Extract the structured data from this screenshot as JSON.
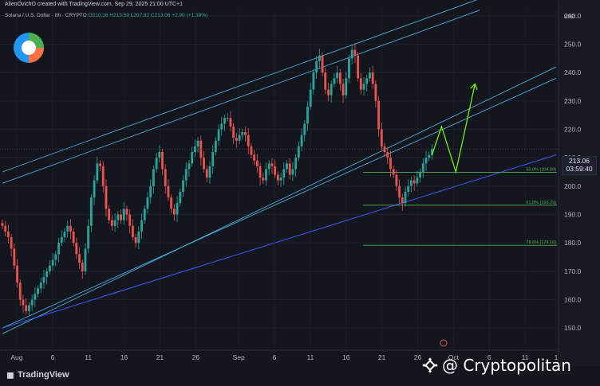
{
  "header": {
    "credit": "AlienOvichO created with TradingView.com, Sep 29, 2025 21:00 UTC+1",
    "symbol": "Solana / U.S. Dollar · 8h · CRYPTO",
    "ohlc": "O210.16 H213.59 L207.82 C213.06 +2.90 (+1.38%)"
  },
  "axis": {
    "currency": "USD"
  },
  "price_tag": {
    "price": "213.06",
    "countdown": "03:59:40"
  },
  "footer": {
    "brand": "TradingView",
    "watermark": "@ Cryptopolitan"
  },
  "colors": {
    "up": "#26a69a",
    "down": "#ef5350",
    "channel": "#4fc3f7",
    "trend": "#3d5afe",
    "fib": "#4caf50",
    "arrow": "#76ff03"
  },
  "chart_data": {
    "type": "candlestick",
    "ylim": [
      145,
      265
    ],
    "y_ticks": [
      150,
      160,
      170,
      180,
      190,
      200,
      210,
      220,
      230,
      240,
      250,
      260
    ],
    "x_ticks": [
      {
        "label": "Aug",
        "bar": 6
      },
      {
        "label": "6",
        "bar": 21
      },
      {
        "label": "11",
        "bar": 36
      },
      {
        "label": "16",
        "bar": 51
      },
      {
        "label": "21",
        "bar": 66
      },
      {
        "label": "26",
        "bar": 81
      },
      {
        "label": "Sep",
        "bar": 99
      },
      {
        "label": "6",
        "bar": 114
      },
      {
        "label": "11",
        "bar": 129
      },
      {
        "label": "16",
        "bar": 144
      },
      {
        "label": "21",
        "bar": 159
      },
      {
        "label": "26",
        "bar": 174
      },
      {
        "label": "Oct",
        "bar": 189
      },
      {
        "label": "6",
        "bar": 204
      },
      {
        "label": "11",
        "bar": 219
      },
      {
        "label": "1",
        "bar": 232
      }
    ],
    "closes": [
      186,
      184,
      182,
      178,
      172,
      166,
      160,
      158,
      156,
      158,
      160,
      162,
      164,
      166,
      168,
      170,
      172,
      174,
      176,
      180,
      182,
      184,
      186,
      184,
      180,
      176,
      173,
      170,
      178,
      186,
      196,
      202,
      208,
      207,
      200,
      192,
      188,
      186,
      188,
      190,
      188,
      192,
      190,
      186,
      182,
      180,
      184,
      188,
      192,
      196,
      200,
      206,
      210,
      212,
      206,
      200,
      196,
      192,
      190,
      194,
      198,
      202,
      206,
      208,
      212,
      214,
      216,
      210,
      206,
      203,
      207,
      212,
      216,
      220,
      222,
      224,
      224,
      221,
      217,
      216,
      218,
      219,
      218,
      214,
      211,
      209,
      207,
      203,
      202,
      206,
      208,
      207,
      204,
      202,
      203,
      206,
      208,
      204,
      206,
      210,
      214,
      218,
      222,
      228,
      234,
      240,
      244,
      246,
      240,
      234,
      232,
      236,
      238,
      240,
      236,
      232,
      238,
      245,
      248,
      246,
      238,
      234,
      236,
      238,
      240,
      236,
      230,
      220,
      214,
      212,
      210,
      206,
      204,
      200,
      196,
      194,
      198,
      200,
      202,
      201,
      203,
      205,
      208,
      210,
      211,
      213
    ],
    "bar_start_index": 0,
    "fib_levels": [
      {
        "label": "50.0% (204.89)",
        "price": 204.89
      },
      {
        "label": "61.8% (193.29)",
        "price": 193.29
      },
      {
        "label": "78.6% (179.16)",
        "price": 179.16
      }
    ],
    "channel_lines": [
      {
        "x1": 0,
        "y1": 205,
        "x2": 200,
        "y2": 266
      },
      {
        "x1": 0,
        "y1": 201,
        "x2": 200,
        "y2": 262
      },
      {
        "x1": 0,
        "y1": 148,
        "x2": 232,
        "y2": 242
      },
      {
        "x1": 0,
        "y1": 150,
        "x2": 232,
        "y2": 238
      }
    ],
    "trend_line": {
      "x1": 0,
      "y1": 150,
      "x2": 232,
      "y2": 211
    },
    "projection": [
      {
        "bar": 180,
        "price": 211
      },
      {
        "bar": 184,
        "price": 221
      },
      {
        "bar": 190,
        "price": 205
      },
      {
        "bar": 198,
        "price": 236
      }
    ]
  }
}
